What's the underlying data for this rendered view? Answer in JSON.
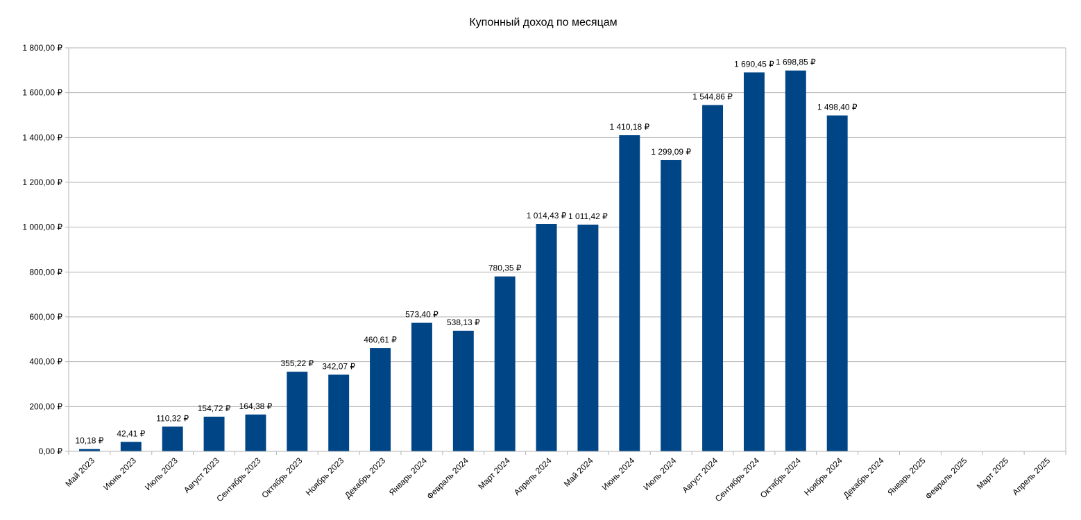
{
  "chart_data": {
    "type": "bar",
    "title": "Купонный доход по месяцам",
    "xlabel": "",
    "ylabel": "",
    "ylim": [
      0,
      1800
    ],
    "ytick_step": 200,
    "ytick_labels": [
      "0,00 ₽",
      "200,00 ₽",
      "400,00 ₽",
      "600,00 ₽",
      "800,00 ₽",
      "1 000,00 ₽",
      "1 200,00 ₽",
      "1 400,00 ₽",
      "1 600,00 ₽",
      "1 800,00 ₽"
    ],
    "grid": true,
    "bar_color": "#004586",
    "categories": [
      "Май 2023",
      "Июнь 2023",
      "Июль 2023",
      "Август 2023",
      "Сентябрь 2023",
      "Октябрь 2023",
      "Ноябрь 2023",
      "Декабрь 2023",
      "Январь 2024",
      "Февраль 2024",
      "Март 2024",
      "Апрель 2024",
      "Май 2024",
      "Июнь 2024",
      "Июль 2024",
      "Август 2024",
      "Сентябрь 2024",
      "Октябрь 2024",
      "Ноябрь 2024",
      "Декабрь 2024",
      "Январь 2025",
      "Февраль 2025",
      "Март 2025",
      "Апрель 2025"
    ],
    "values": [
      10.18,
      42.41,
      110.32,
      154.72,
      164.38,
      355.22,
      342.07,
      460.61,
      573.4,
      538.13,
      780.35,
      1014.43,
      1011.42,
      1410.18,
      1299.09,
      1544.86,
      1690.45,
      1698.85,
      1498.4,
      null,
      null,
      null,
      null,
      null
    ],
    "data_labels": [
      "10,18 ₽",
      "42,41 ₽",
      "110,32 ₽",
      "154,72 ₽",
      "164,38 ₽",
      "355,22 ₽",
      "342,07 ₽",
      "460,61 ₽",
      "573,40 ₽",
      "538,13 ₽",
      "780,35 ₽",
      "1 014,43 ₽",
      "1 011,42 ₽",
      "1 410,18 ₽",
      "1 299,09 ₽",
      "1 544,86 ₽",
      "1 690,45 ₽",
      "1 698,85 ₽",
      "1 498,40 ₽",
      "",
      "",
      "",
      "",
      ""
    ]
  }
}
